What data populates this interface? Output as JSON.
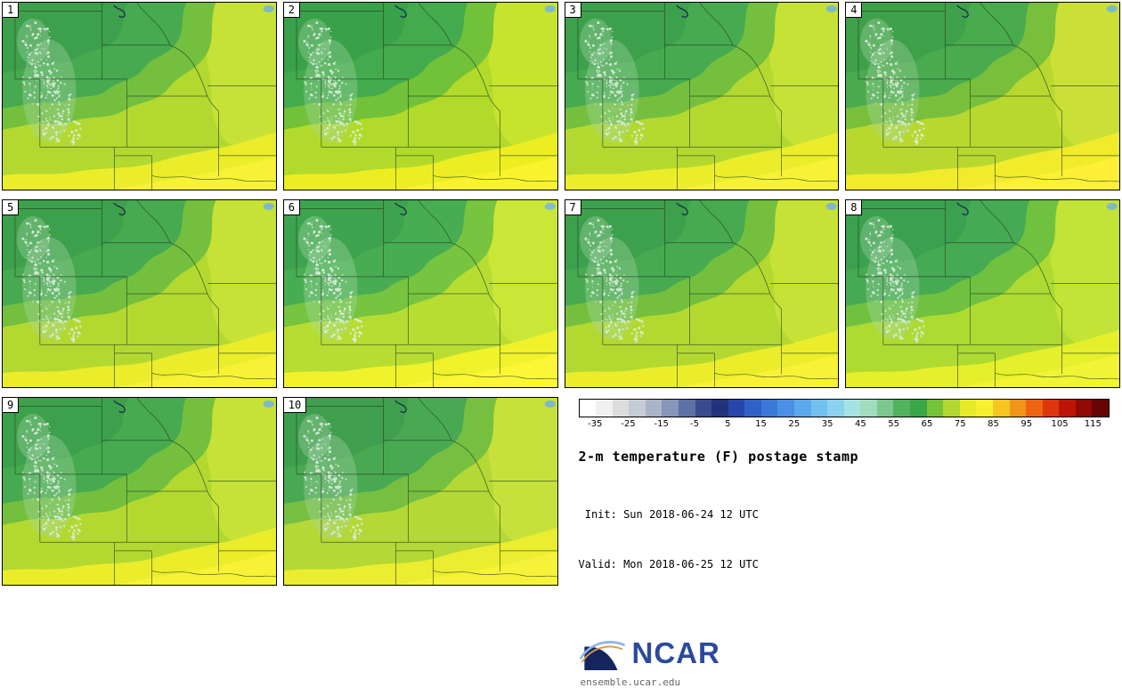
{
  "panels": [
    {
      "label": "1"
    },
    {
      "label": "2"
    },
    {
      "label": "3"
    },
    {
      "label": "4"
    },
    {
      "label": "5"
    },
    {
      "label": "6"
    },
    {
      "label": "7"
    },
    {
      "label": "8"
    },
    {
      "label": "9"
    },
    {
      "label": "10"
    }
  ],
  "colorbar": {
    "unit": "F",
    "min": -40,
    "max": 120,
    "ticks": [
      -35,
      -25,
      -15,
      -5,
      5,
      15,
      25,
      35,
      45,
      55,
      65,
      75,
      85,
      95,
      105,
      115
    ],
    "colors": [
      "#ffffff",
      "#f0f0f0",
      "#dcdcdc",
      "#c6ccd6",
      "#aab4c8",
      "#8795b8",
      "#5f70a4",
      "#3a4a8e",
      "#22337e",
      "#2847ac",
      "#3160c8",
      "#3c78d8",
      "#4b90e4",
      "#5ca8ec",
      "#70c0f0",
      "#8ad2ee",
      "#a6e2e2",
      "#a2dcbe",
      "#7cc890",
      "#52b25e",
      "#3aa648",
      "#76c23a",
      "#b0d830",
      "#e6ea2a",
      "#f7f02e",
      "#f5c523",
      "#f2951a",
      "#ed6512",
      "#dd360d",
      "#bc1508",
      "#8f0a05",
      "#670503"
    ]
  },
  "title": "2-m temperature (F) postage stamp",
  "init_line": " Init: Sun 2018-06-24 12 UTC",
  "valid_line": "Valid: Mon 2018-06-25 12 UTC",
  "brand": {
    "logo_text": "NCAR",
    "site_url": "ensemble.ucar.edu"
  }
}
